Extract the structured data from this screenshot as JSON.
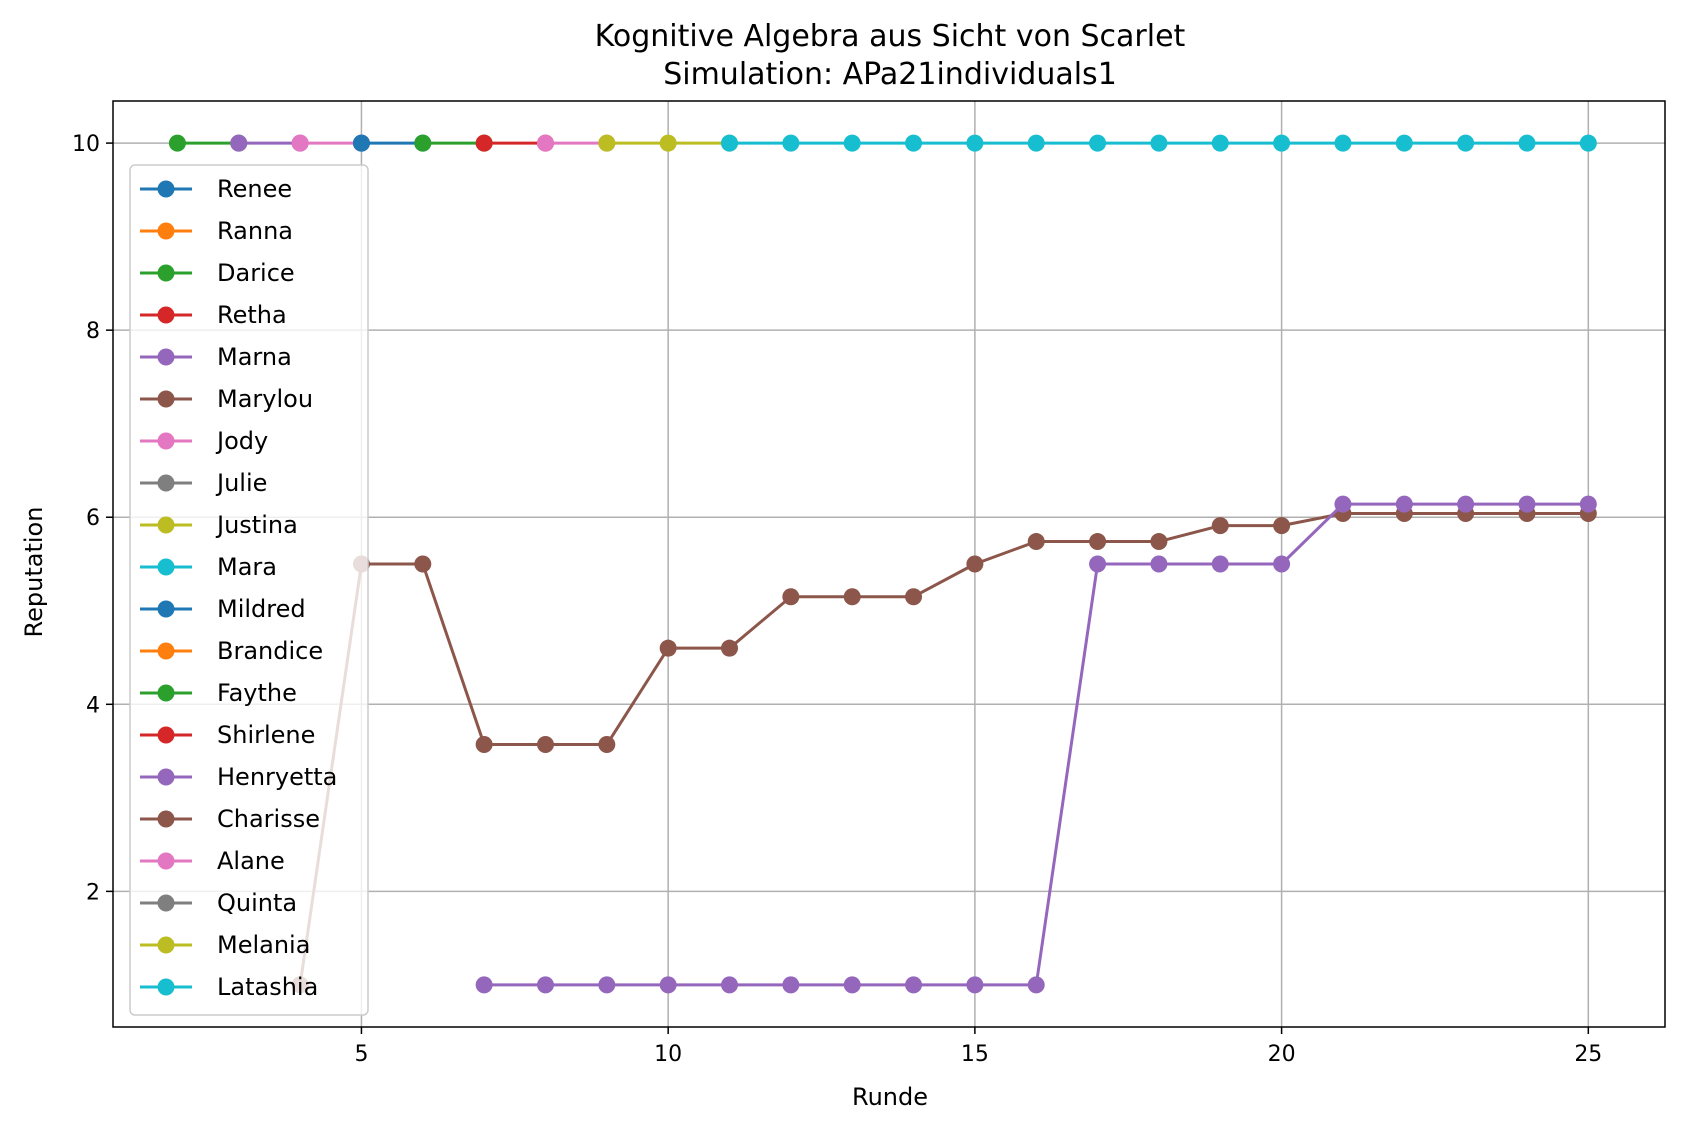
{
  "chart_data": {
    "type": "line",
    "title": "Kognitive Algebra aus Sicht von Scarlet",
    "subtitle": "Simulation: APa21individuals1",
    "xlabel": "Runde",
    "ylabel": "Reputation",
    "xlim": [
      0.95,
      26.25
    ],
    "ylim": [
      0.55,
      10.45
    ],
    "xticks": [
      5,
      10,
      15,
      20,
      25
    ],
    "yticks": [
      2,
      4,
      6,
      8,
      10
    ],
    "grid": true,
    "legend_position": "left",
    "series": [
      {
        "name": "Renee",
        "color": "#1f77b4",
        "x": [
          5
        ],
        "y": [
          10
        ]
      },
      {
        "name": "Ranna",
        "color": "#ff7f0e",
        "x": [],
        "y": []
      },
      {
        "name": "Darice",
        "color": "#2ca02c",
        "x": [
          2,
          3
        ],
        "y": [
          10,
          10
        ]
      },
      {
        "name": "Retha",
        "color": "#d62728",
        "x": [],
        "y": []
      },
      {
        "name": "Marna",
        "color": "#9467bd",
        "x": [
          3,
          4
        ],
        "y": [
          10,
          10
        ]
      },
      {
        "name": "Marylou",
        "color": "#8c564b",
        "x": [
          4,
          5,
          6,
          7,
          8,
          9,
          10,
          11,
          12,
          13,
          14,
          15,
          16,
          17,
          18,
          19,
          20,
          21,
          22,
          23,
          24,
          25
        ],
        "y": [
          1.0,
          5.5,
          5.5,
          3.57,
          3.57,
          3.57,
          4.6,
          4.6,
          5.15,
          5.15,
          5.15,
          5.5,
          5.74,
          5.74,
          5.74,
          5.91,
          5.91,
          6.04,
          6.04,
          6.04,
          6.04,
          6.04
        ]
      },
      {
        "name": "Jody",
        "color": "#e377c2",
        "x": [
          4,
          5
        ],
        "y": [
          10,
          10
        ]
      },
      {
        "name": "Julie",
        "color": "#7f7f7f",
        "x": [],
        "y": []
      },
      {
        "name": "Justina",
        "color": "#bcbd22",
        "x": [],
        "y": []
      },
      {
        "name": "Mara",
        "color": "#17becf",
        "x": [],
        "y": []
      },
      {
        "name": "Mildred",
        "color": "#1f77b4",
        "x": [
          5,
          6
        ],
        "y": [
          10,
          10
        ]
      },
      {
        "name": "Brandice",
        "color": "#ff7f0e",
        "x": [],
        "y": []
      },
      {
        "name": "Faythe",
        "color": "#2ca02c",
        "x": [
          6,
          7
        ],
        "y": [
          10,
          10
        ]
      },
      {
        "name": "Shirlene",
        "color": "#d62728",
        "x": [
          7,
          8
        ],
        "y": [
          10,
          10
        ]
      },
      {
        "name": "Henryetta",
        "color": "#9467bd",
        "x": [
          7,
          8,
          9,
          10,
          11,
          12,
          13,
          14,
          15,
          16,
          17,
          18,
          19,
          20,
          21,
          22,
          23,
          24,
          25
        ],
        "y": [
          1.0,
          1.0,
          1.0,
          1.0,
          1.0,
          1.0,
          1.0,
          1.0,
          1.0,
          1.0,
          5.5,
          5.5,
          5.5,
          5.5,
          6.14,
          6.14,
          6.14,
          6.14,
          6.14
        ]
      },
      {
        "name": "Charisse",
        "color": "#8c564b",
        "x": [],
        "y": []
      },
      {
        "name": "Alane",
        "color": "#e377c2",
        "x": [
          8,
          9
        ],
        "y": [
          10,
          10
        ]
      },
      {
        "name": "Quinta",
        "color": "#7f7f7f",
        "x": [],
        "y": []
      },
      {
        "name": "Melania",
        "color": "#bcbd22",
        "x": [
          9,
          10,
          11
        ],
        "y": [
          10,
          10,
          10
        ]
      },
      {
        "name": "Latashia",
        "color": "#17becf",
        "x": [
          11,
          12,
          13,
          14,
          15,
          16,
          17,
          18,
          19,
          20,
          21,
          22,
          23,
          24,
          25
        ],
        "y": [
          10,
          10,
          10,
          10,
          10,
          10,
          10,
          10,
          10,
          10,
          10,
          10,
          10,
          10,
          10
        ]
      }
    ]
  }
}
